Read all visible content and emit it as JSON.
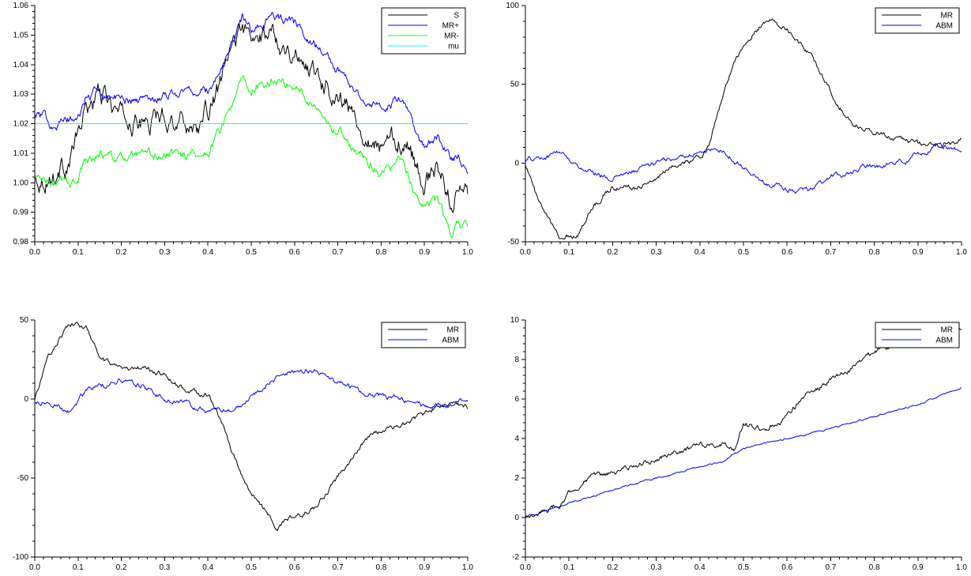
{
  "chart_data": [
    {
      "type": "line",
      "xlim": [
        0.0,
        1.0
      ],
      "ylim": [
        0.98,
        1.06
      ],
      "xticks": [
        "0.0",
        "0.1",
        "0.2",
        "0.3",
        "0.4",
        "0.5",
        "0.6",
        "0.7",
        "0.8",
        "0.9",
        "1.0"
      ],
      "yticks": [
        "0.98",
        "0.99",
        "1.00",
        "1.01",
        "1.02",
        "1.03",
        "1.04",
        "1.05",
        "1.06"
      ],
      "ytick_values": [
        0.98,
        0.99,
        1.0,
        1.01,
        1.02,
        1.03,
        1.04,
        1.05,
        1.06
      ],
      "legend_position": "top-right",
      "grid": false,
      "series": [
        {
          "name": "S",
          "color": "#000000",
          "noise": 0.0025,
          "x": [
            0,
            0.05,
            0.08,
            0.1,
            0.12,
            0.15,
            0.2,
            0.25,
            0.3,
            0.35,
            0.38,
            0.4,
            0.43,
            0.45,
            0.48,
            0.5,
            0.52,
            0.55,
            0.58,
            0.6,
            0.65,
            0.7,
            0.75,
            0.8,
            0.85,
            0.88,
            0.9,
            0.93,
            0.96,
            0.98,
            1.0
          ],
          "y": [
            1.001,
            1.003,
            1.008,
            1.016,
            1.025,
            1.03,
            1.022,
            1.02,
            1.023,
            1.021,
            1.019,
            1.024,
            1.033,
            1.043,
            1.054,
            1.046,
            1.049,
            1.052,
            1.046,
            1.044,
            1.038,
            1.03,
            1.02,
            1.012,
            1.016,
            1.006,
            1.0,
            1.004,
            0.995,
            0.999,
            0.995
          ]
        },
        {
          "name": "MR+",
          "color": "#0000ff",
          "noise": 0.0012,
          "x": [
            0,
            0.05,
            0.1,
            0.12,
            0.15,
            0.2,
            0.25,
            0.3,
            0.35,
            0.4,
            0.43,
            0.45,
            0.48,
            0.5,
            0.52,
            0.55,
            0.58,
            0.6,
            0.65,
            0.7,
            0.75,
            0.8,
            0.85,
            0.88,
            0.9,
            0.93,
            0.96,
            0.98,
            1.0
          ],
          "y": [
            1.023,
            1.02,
            1.022,
            1.029,
            1.031,
            1.028,
            1.028,
            1.03,
            1.031,
            1.031,
            1.038,
            1.045,
            1.056,
            1.051,
            1.054,
            1.056,
            1.055,
            1.054,
            1.047,
            1.038,
            1.03,
            1.025,
            1.028,
            1.016,
            1.012,
            1.015,
            1.008,
            1.009,
            1.005
          ]
        },
        {
          "name": "MR-",
          "color": "#00ff00",
          "noise": 0.0012,
          "x": [
            0,
            0.05,
            0.1,
            0.12,
            0.15,
            0.2,
            0.25,
            0.3,
            0.35,
            0.4,
            0.43,
            0.45,
            0.48,
            0.5,
            0.52,
            0.55,
            0.58,
            0.6,
            0.65,
            0.7,
            0.75,
            0.8,
            0.85,
            0.88,
            0.9,
            0.93,
            0.96,
            0.98,
            1.0
          ],
          "y": [
            1.002,
            0.999,
            1.001,
            1.008,
            1.01,
            1.008,
            1.008,
            1.009,
            1.01,
            1.01,
            1.018,
            1.025,
            1.034,
            1.03,
            1.032,
            1.035,
            1.034,
            1.033,
            1.026,
            1.018,
            1.01,
            1.004,
            1.006,
            0.996,
            0.991,
            0.994,
            0.983,
            0.987,
            0.985
          ]
        },
        {
          "name": "mu",
          "color": "#00ffff",
          "noise": 0,
          "x": [
            0,
            1.0
          ],
          "y": [
            1.02,
            1.02
          ]
        }
      ]
    },
    {
      "type": "line",
      "xlim": [
        0.0,
        1.0
      ],
      "ylim": [
        -50,
        100
      ],
      "xticks": [
        "0.0",
        "0.1",
        "0.2",
        "0.3",
        "0.4",
        "0.5",
        "0.6",
        "0.7",
        "0.8",
        "0.9",
        "1.0"
      ],
      "yticks": [
        "-50",
        "0",
        "50",
        "100"
      ],
      "ytick_values": [
        -50,
        0,
        50,
        100
      ],
      "legend_position": "top-right",
      "grid": false,
      "series": [
        {
          "name": "MR",
          "color": "#000000",
          "noise": 1.2,
          "x": [
            0,
            0.03,
            0.06,
            0.08,
            0.12,
            0.15,
            0.18,
            0.2,
            0.25,
            0.3,
            0.35,
            0.4,
            0.42,
            0.45,
            0.48,
            0.5,
            0.53,
            0.56,
            0.58,
            0.6,
            0.65,
            0.7,
            0.75,
            0.8,
            0.85,
            0.9,
            0.95,
            1.0
          ],
          "y": [
            0,
            -25,
            -40,
            -47,
            -45,
            -30,
            -20,
            -15,
            -15,
            -10,
            0,
            3,
            12,
            40,
            65,
            75,
            85,
            92,
            88,
            85,
            70,
            45,
            25,
            20,
            17,
            12,
            12,
            14
          ]
        },
        {
          "name": "ABM",
          "color": "#0000ff",
          "noise": 1.2,
          "x": [
            0,
            0.05,
            0.08,
            0.12,
            0.15,
            0.2,
            0.25,
            0.3,
            0.35,
            0.4,
            0.45,
            0.5,
            0.55,
            0.6,
            0.65,
            0.7,
            0.75,
            0.8,
            0.85,
            0.9,
            0.95,
            1.0
          ],
          "y": [
            2,
            4,
            7,
            -2,
            -5,
            -10,
            -5,
            0,
            3,
            8,
            8,
            -2,
            -12,
            -17,
            -17,
            -10,
            -5,
            -2,
            0,
            5,
            12,
            8
          ]
        }
      ]
    },
    {
      "type": "line",
      "xlim": [
        0.0,
        1.0
      ],
      "ylim": [
        -100,
        50
      ],
      "xticks": [
        "0.0",
        "0.1",
        "0.2",
        "0.3",
        "0.4",
        "0.5",
        "0.6",
        "0.7",
        "0.8",
        "0.9",
        "1.0"
      ],
      "yticks": [
        "-100",
        "-50",
        "0",
        "50"
      ],
      "ytick_values": [
        -100,
        -50,
        0,
        50
      ],
      "legend_position": "top-right",
      "grid": false,
      "series": [
        {
          "name": "MR",
          "color": "#000000",
          "noise": 1.2,
          "x": [
            0,
            0.03,
            0.06,
            0.08,
            0.12,
            0.15,
            0.2,
            0.25,
            0.3,
            0.35,
            0.4,
            0.42,
            0.45,
            0.48,
            0.5,
            0.53,
            0.56,
            0.58,
            0.6,
            0.65,
            0.7,
            0.75,
            0.8,
            0.85,
            0.9,
            0.95,
            1.0
          ],
          "y": [
            0,
            25,
            40,
            47,
            45,
            25,
            17,
            20,
            15,
            5,
            2,
            -5,
            -30,
            -50,
            -60,
            -70,
            -82,
            -78,
            -75,
            -68,
            -50,
            -30,
            -20,
            -15,
            -10,
            -2,
            -5
          ]
        },
        {
          "name": "ABM",
          "color": "#0000ff",
          "noise": 1.2,
          "x": [
            0,
            0.05,
            0.08,
            0.12,
            0.15,
            0.2,
            0.25,
            0.3,
            0.35,
            0.4,
            0.45,
            0.5,
            0.55,
            0.6,
            0.65,
            0.7,
            0.75,
            0.8,
            0.85,
            0.9,
            0.95,
            1.0
          ],
          "y": [
            -2,
            -4,
            -7,
            5,
            8,
            12,
            8,
            0,
            -3,
            -8,
            -8,
            2,
            12,
            18,
            18,
            10,
            5,
            2,
            0,
            -5,
            -5,
            0
          ]
        }
      ]
    },
    {
      "type": "line",
      "xlim": [
        0.0,
        1.0
      ],
      "ylim": [
        -2,
        10
      ],
      "xticks": [
        "0.0",
        "0.1",
        "0.2",
        "0.3",
        "0.4",
        "0.5",
        "0.6",
        "0.7",
        "0.8",
        "0.9",
        "1.0"
      ],
      "yticks": [
        "-2",
        "0",
        "2",
        "4",
        "6",
        "8",
        "10"
      ],
      "ytick_values": [
        -2,
        0,
        2,
        4,
        6,
        8,
        10
      ],
      "legend_position": "top-right",
      "grid": false,
      "series": [
        {
          "name": "MR",
          "color": "#000000",
          "noise": 0.1,
          "x": [
            0,
            0.05,
            0.08,
            0.1,
            0.13,
            0.15,
            0.2,
            0.25,
            0.3,
            0.35,
            0.4,
            0.45,
            0.48,
            0.5,
            0.55,
            0.6,
            0.65,
            0.7,
            0.75,
            0.8,
            0.85,
            0.9,
            0.95,
            1.0
          ],
          "y": [
            0,
            0.3,
            0.7,
            1.2,
            1.8,
            2.0,
            2.2,
            2.6,
            3.0,
            3.3,
            3.6,
            3.8,
            3.5,
            4.8,
            4.4,
            5.2,
            6.3,
            7.0,
            7.6,
            8.4,
            8.9,
            9.2,
            9.3,
            9.5
          ]
        },
        {
          "name": "ABM",
          "color": "#0000ff",
          "noise": 0.03,
          "x": [
            0,
            0.1,
            0.2,
            0.3,
            0.4,
            0.45,
            0.5,
            0.6,
            0.7,
            0.8,
            0.9,
            1.0
          ],
          "y": [
            0,
            0.7,
            1.4,
            2.0,
            2.6,
            2.8,
            3.5,
            4.0,
            4.5,
            5.1,
            5.7,
            6.6
          ]
        }
      ]
    }
  ]
}
